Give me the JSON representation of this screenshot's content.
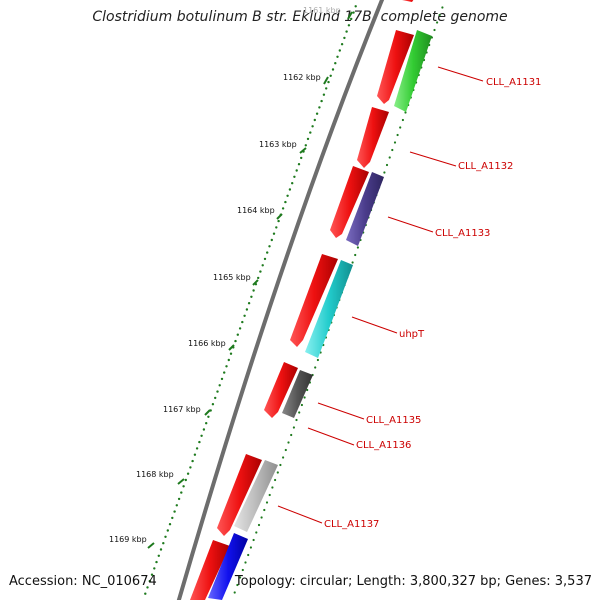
{
  "title": "Clostridium botulinum B str. Eklund 17B, complete genome",
  "footer": {
    "accession": "Accession: NC_010674",
    "summary": "Topology: circular; Length: 3,800,327 bp; Genes: 3,537"
  },
  "ticks": [
    {
      "label": "1161 kbp"
    },
    {
      "label": "1162 kbp"
    },
    {
      "label": "1163 kbp"
    },
    {
      "label": "1164 kbp"
    },
    {
      "label": "1165 kbp"
    },
    {
      "label": "1166 kbp"
    },
    {
      "label": "1167 kbp"
    },
    {
      "label": "1168 kbp"
    },
    {
      "label": "1169 kbp"
    }
  ],
  "gene_labels": [
    {
      "label": "CLL_A1131"
    },
    {
      "label": "CLL_A1132"
    },
    {
      "label": "CLL_A1133"
    },
    {
      "label": "uhpT"
    },
    {
      "label": "CLL_A1135"
    },
    {
      "label": "CLL_A1136"
    },
    {
      "label": "CLL_A1137"
    }
  ],
  "colors": {
    "backbone": "#777777",
    "tick": "#1e7a1e",
    "label_red": "#cc0000",
    "forward_gene": "#ee1111",
    "cog_green": "#33cc33",
    "cog_purple": "#4b3d8c",
    "cog_cyan": "#22cccc",
    "cog_darkgray": "#555555",
    "cog_lightgray": "#bbbbbb",
    "cog_blue": "#1111ee"
  }
}
